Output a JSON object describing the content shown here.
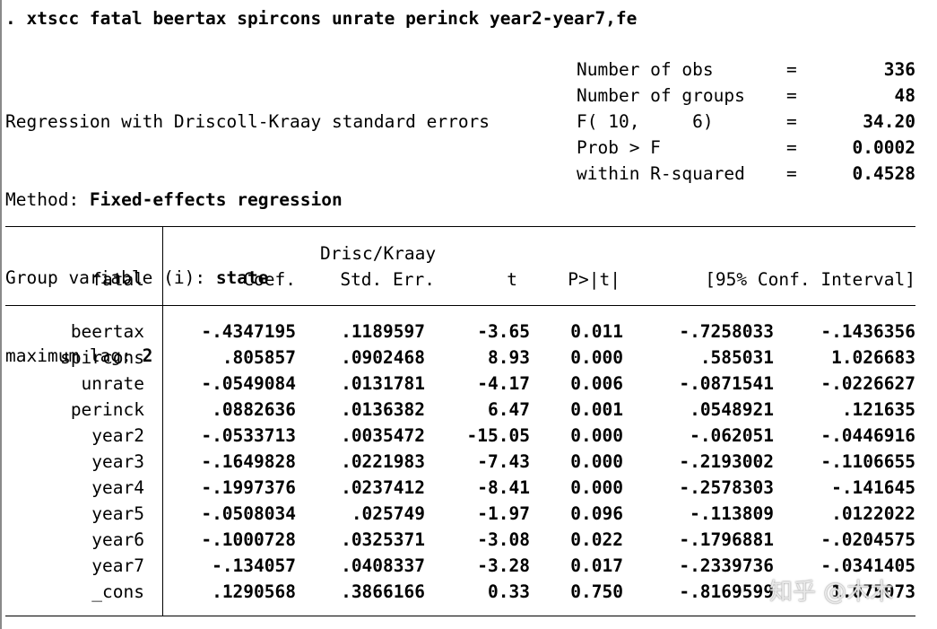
{
  "command": ". xtscc fatal beertax spircons unrate perinck year2-year7,fe",
  "header_left": [
    {
      "label": "Regression with Driscoll-Kraay standard errors",
      "value": ""
    },
    {
      "label": "Method: ",
      "value": "Fixed-effects regression"
    },
    {
      "label": "Group variable (i): ",
      "value": "state"
    },
    {
      "label": "maximum lag: ",
      "value": "2"
    }
  ],
  "header_right": [
    {
      "label": "Number of obs",
      "eq": "=",
      "value": "336"
    },
    {
      "label": "Number of groups",
      "eq": "=",
      "value": "48"
    },
    {
      "label": "F( 10,     6)",
      "eq": "=",
      "value": "34.20"
    },
    {
      "label": "Prob > F",
      "eq": "=",
      "value": "0.0002"
    },
    {
      "label": "within R-squared",
      "eq": "=",
      "value": "0.4528"
    }
  ],
  "table": {
    "header_top": "Drisc/Kraay",
    "columns": {
      "depvar": "fatal",
      "coef": "Coef.",
      "se": "Std. Err.",
      "t": "t",
      "p": "P>|t|",
      "ci": "[95% Conf. Interval]"
    },
    "rows": [
      {
        "var": "beertax",
        "coef": "-.4347195",
        "se": ".1189597",
        "t": "-3.65",
        "p": "0.011",
        "lo": "-.7258033",
        "hi": "-.1436356"
      },
      {
        "var": "spircons",
        "coef": ".805857",
        "se": ".0902468",
        "t": "8.93",
        "p": "0.000",
        "lo": ".585031",
        "hi": "1.026683"
      },
      {
        "var": "unrate",
        "coef": "-.0549084",
        "se": ".0131781",
        "t": "-4.17",
        "p": "0.006",
        "lo": "-.0871541",
        "hi": "-.0226627"
      },
      {
        "var": "perinck",
        "coef": ".0882636",
        "se": ".0136382",
        "t": "6.47",
        "p": "0.001",
        "lo": ".0548921",
        "hi": ".121635"
      },
      {
        "var": "year2",
        "coef": "-.0533713",
        "se": ".0035472",
        "t": "-15.05",
        "p": "0.000",
        "lo": "-.062051",
        "hi": "-.0446916"
      },
      {
        "var": "year3",
        "coef": "-.1649828",
        "se": ".0221983",
        "t": "-7.43",
        "p": "0.000",
        "lo": "-.2193002",
        "hi": "-.1106655"
      },
      {
        "var": "year4",
        "coef": "-.1997376",
        "se": ".0237412",
        "t": "-8.41",
        "p": "0.000",
        "lo": "-.2578303",
        "hi": "-.141645"
      },
      {
        "var": "year5",
        "coef": "-.0508034",
        "se": ".025749",
        "t": "-1.97",
        "p": "0.096",
        "lo": "-.113809",
        "hi": ".0122022"
      },
      {
        "var": "year6",
        "coef": "-.1000728",
        "se": ".0325371",
        "t": "-3.08",
        "p": "0.022",
        "lo": "-.1796881",
        "hi": "-.0204575"
      },
      {
        "var": "year7",
        "coef": "-.134057",
        "se": ".0408337",
        "t": "-3.28",
        "p": "0.017",
        "lo": "-.2339736",
        "hi": "-.0341405"
      },
      {
        "var": "_cons",
        "coef": ".1290568",
        "se": ".3866166",
        "t": "0.33",
        "p": "0.750",
        "lo": "-.8169599",
        "hi": "1.075073"
      }
    ]
  },
  "watermark": "知乎 @木木"
}
